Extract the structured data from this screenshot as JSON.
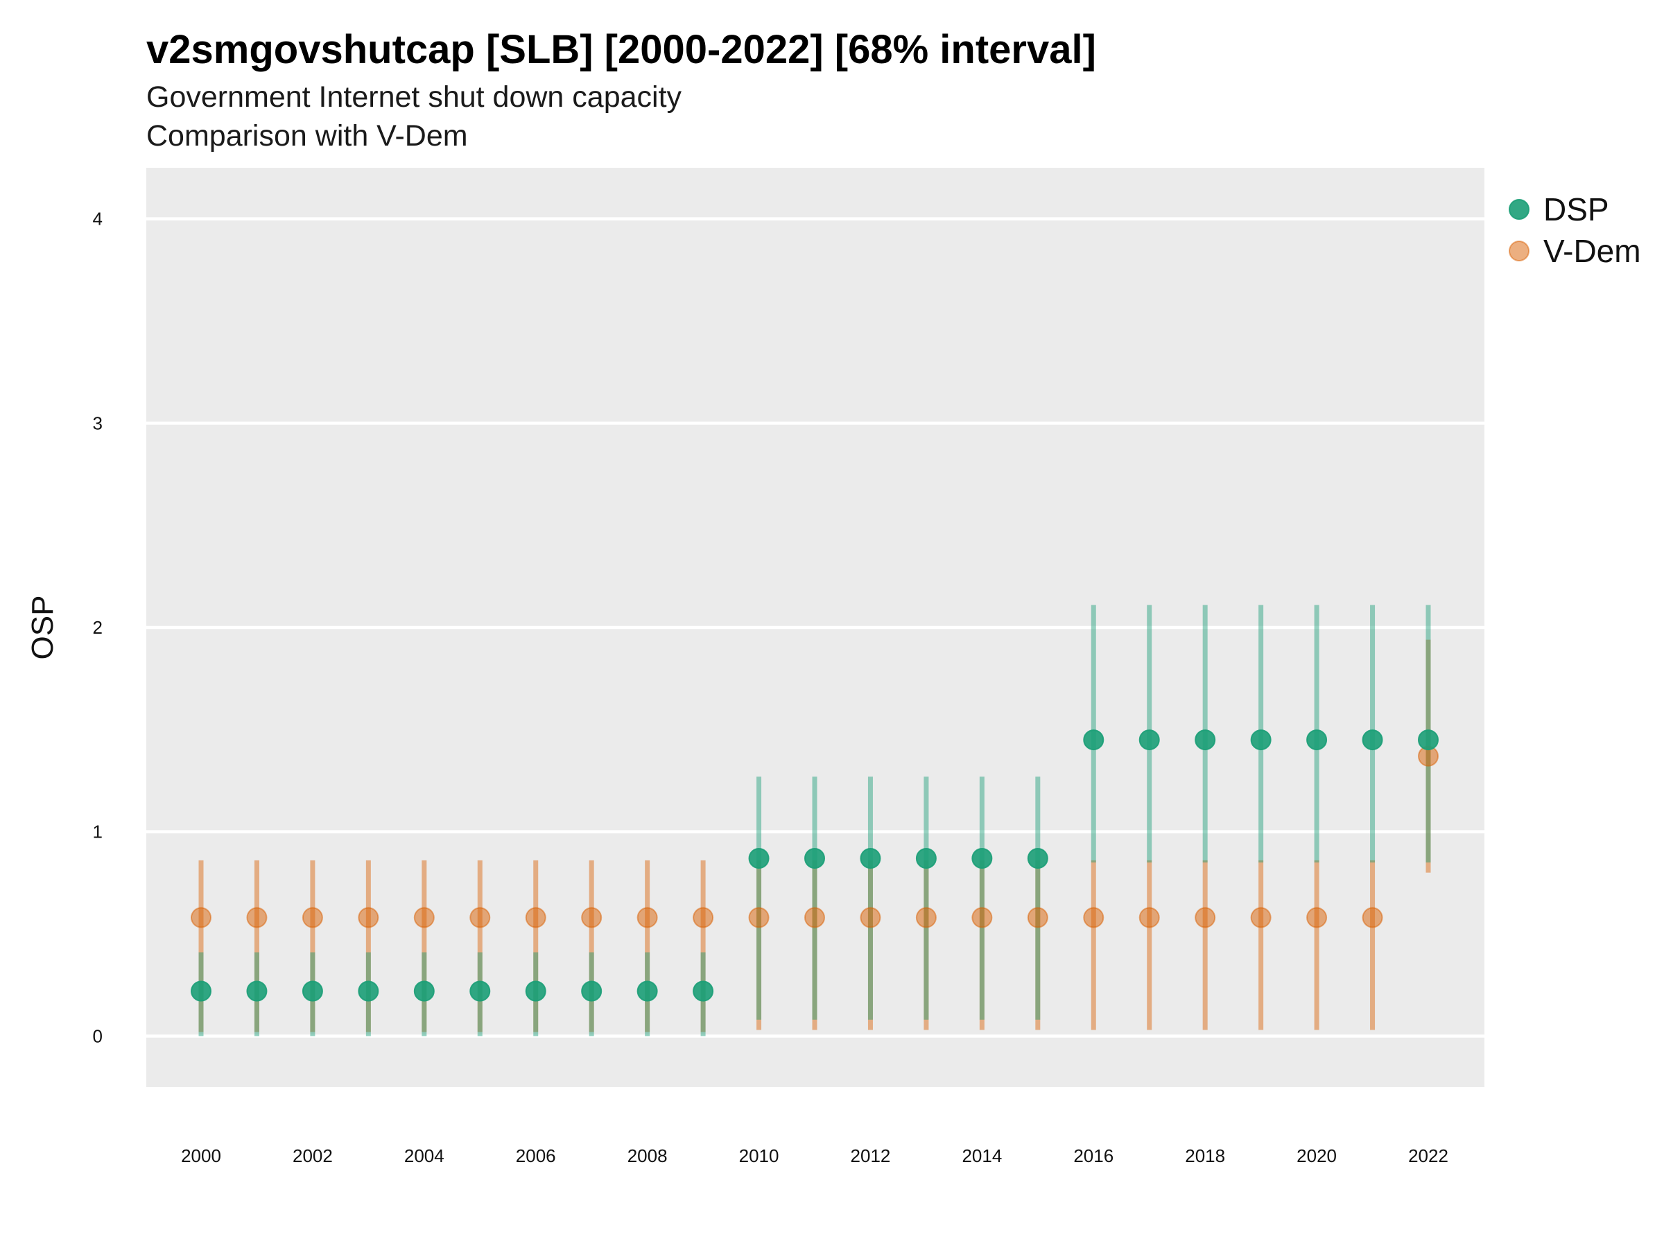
{
  "chart_data": {
    "type": "scatter",
    "title": "v2smgovshutcap [SLB] [2000-2022] [68% interval]",
    "subtitle": [
      "Government Internet shut down capacity",
      "Comparison with V-Dem"
    ],
    "xlabel": "",
    "ylabel": "OSP",
    "ylim": [
      -0.25,
      4.25
    ],
    "xlim": [
      1999,
      2023
    ],
    "yticks": [
      0,
      1,
      2,
      3,
      4
    ],
    "xticks": [
      2000,
      2002,
      2004,
      2006,
      2008,
      2010,
      2012,
      2014,
      2016,
      2018,
      2020,
      2022
    ],
    "grid": true,
    "legend_position": "right",
    "x": [
      2000,
      2001,
      2002,
      2003,
      2004,
      2005,
      2006,
      2007,
      2008,
      2009,
      2010,
      2011,
      2012,
      2013,
      2014,
      2015,
      2016,
      2017,
      2018,
      2019,
      2020,
      2021,
      2022
    ],
    "series": [
      {
        "name": "DSP",
        "color": "#1b9e77",
        "values": [
          0.22,
          0.22,
          0.22,
          0.22,
          0.22,
          0.22,
          0.22,
          0.22,
          0.22,
          0.22,
          0.87,
          0.87,
          0.87,
          0.87,
          0.87,
          0.87,
          1.45,
          1.45,
          1.45,
          1.45,
          1.45,
          1.45,
          1.45
        ],
        "lower": [
          0.0,
          0.0,
          0.0,
          0.0,
          0.0,
          0.0,
          0.0,
          0.0,
          0.0,
          0.0,
          0.08,
          0.08,
          0.08,
          0.08,
          0.08,
          0.08,
          0.85,
          0.85,
          0.85,
          0.85,
          0.85,
          0.85,
          0.85
        ],
        "upper": [
          0.41,
          0.41,
          0.41,
          0.41,
          0.41,
          0.41,
          0.41,
          0.41,
          0.41,
          0.41,
          1.27,
          1.27,
          1.27,
          1.27,
          1.27,
          1.27,
          2.11,
          2.11,
          2.11,
          2.11,
          2.11,
          2.11,
          2.11
        ]
      },
      {
        "name": "V-Dem",
        "color": "#d95f02",
        "values": [
          0.58,
          0.58,
          0.58,
          0.58,
          0.58,
          0.58,
          0.58,
          0.58,
          0.58,
          0.58,
          0.58,
          0.58,
          0.58,
          0.58,
          0.58,
          0.58,
          0.58,
          0.58,
          0.58,
          0.58,
          0.58,
          0.58,
          1.37
        ],
        "lower": [
          0.02,
          0.02,
          0.02,
          0.02,
          0.02,
          0.02,
          0.02,
          0.02,
          0.02,
          0.02,
          0.03,
          0.03,
          0.03,
          0.03,
          0.03,
          0.03,
          0.03,
          0.03,
          0.03,
          0.03,
          0.03,
          0.03,
          0.8
        ],
        "upper": [
          0.86,
          0.86,
          0.86,
          0.86,
          0.86,
          0.86,
          0.86,
          0.86,
          0.86,
          0.86,
          0.86,
          0.86,
          0.86,
          0.86,
          0.86,
          0.86,
          0.86,
          0.86,
          0.86,
          0.86,
          0.86,
          0.86,
          1.94
        ]
      }
    ]
  }
}
